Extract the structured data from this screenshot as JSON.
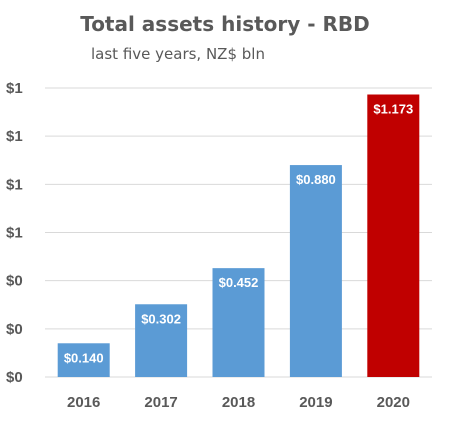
{
  "chart_data": {
    "type": "bar",
    "title": "Total assets history - RBD",
    "subtitle": "last five years, NZ$ bln",
    "categories": [
      "2016",
      "2017",
      "2018",
      "2019",
      "2020"
    ],
    "values": [
      0.14,
      0.302,
      0.452,
      0.88,
      1.173
    ],
    "data_labels": [
      "$0.140",
      "$0.302",
      "$0.452",
      "$0.880",
      "$1.173"
    ],
    "bar_colors": [
      "#5b9bd5",
      "#5b9bd5",
      "#5b9bd5",
      "#5b9bd5",
      "#c00000"
    ],
    "ylim": [
      0,
      1.2
    ],
    "yticks": [
      0,
      0.2,
      0.4,
      0.6,
      0.8,
      1.0,
      1.2
    ],
    "ytick_labels": [
      "$0",
      "$0",
      "$0",
      "$1",
      "$1",
      "$1",
      "$1"
    ],
    "grid": true,
    "grid_color": "#d9d9d9",
    "text_color": "#595959"
  }
}
